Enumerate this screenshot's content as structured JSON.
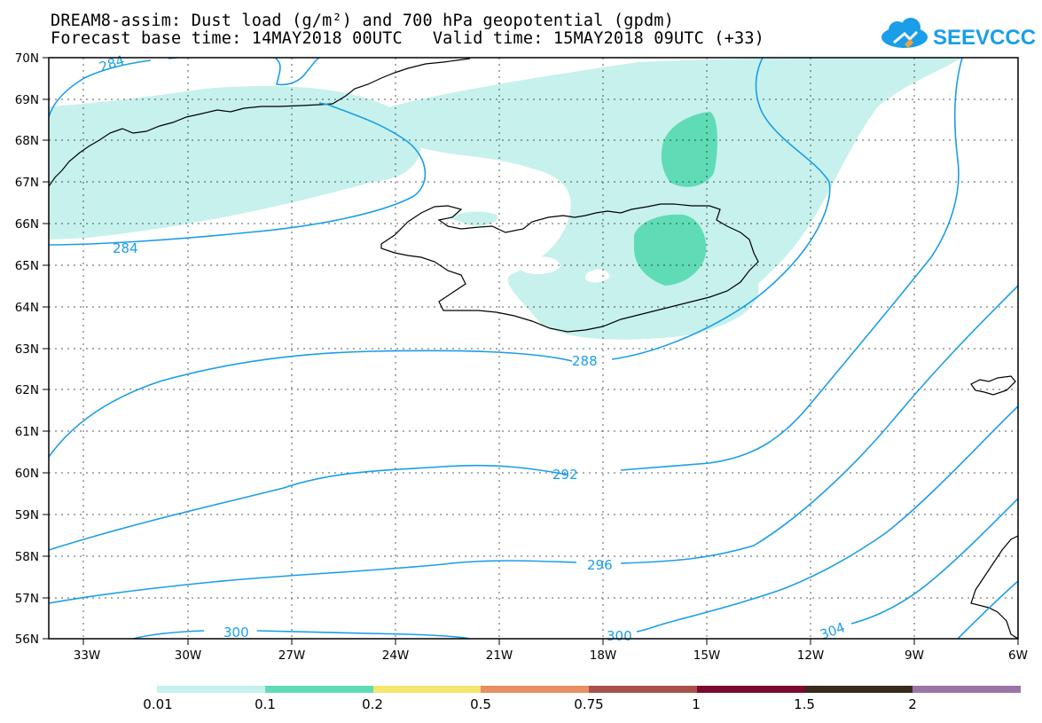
{
  "title": {
    "line1": "DREAM8-assim: Dust load (g/m²) and 700 hPa geopotential (gpdm)",
    "line2": "Forecast base time: 14MAY2018 00UTC   Valid time: 15MAY2018 09UTC (+33)"
  },
  "logo": {
    "text": "SEEVCCC",
    "icon": "cloud-icon",
    "color": "#1a9ee8"
  },
  "map": {
    "latitude_labels": [
      "70N",
      "69N",
      "68N",
      "67N",
      "66N",
      "65N",
      "64N",
      "63N",
      "62N",
      "61N",
      "60N",
      "59N",
      "58N",
      "57N",
      "56N"
    ],
    "longitude_labels": [
      "33W",
      "30W",
      "27W",
      "24W",
      "21W",
      "18W",
      "15W",
      "12W",
      "9W",
      "6W"
    ],
    "contour_labels": [
      "284",
      "284",
      "288",
      "292",
      "296",
      "300",
      "300",
      "304"
    ],
    "contour_color": "#1a9ee8",
    "dust_colors": {
      "0.01": "#c7f1ec",
      "0.1": "#5fdcb5"
    }
  },
  "colorbar": {
    "labels": [
      "0.01",
      "0.1",
      "0.2",
      "0.5",
      "0.75",
      "1",
      "1.5",
      "2"
    ],
    "colors": [
      "#c7f1ec",
      "#5fdcb5",
      "#f5e66e",
      "#e88e63",
      "#a8514b",
      "#7a0a2e",
      "#3a2a1c",
      "#9a76a8"
    ]
  }
}
